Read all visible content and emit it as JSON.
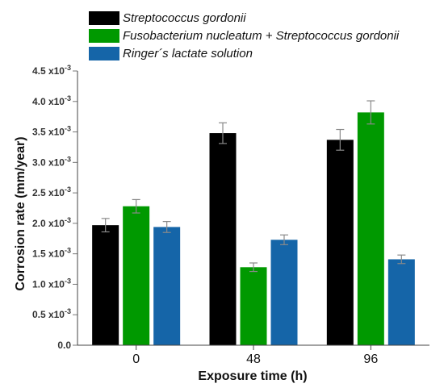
{
  "chart_data": {
    "type": "bar",
    "categories": [
      "0",
      "48",
      "96"
    ],
    "series": [
      {
        "name": "Streptococcus gordonii",
        "color": "#000000",
        "values": [
          0.00197,
          0.00348,
          0.00337
        ],
        "errors": [
          0.00011,
          0.00017,
          0.00017
        ]
      },
      {
        "name": "Fusobacterium nucleatum + Streptococcus gordonii",
        "color": "#009900",
        "values": [
          0.00228,
          0.00128,
          0.00382
        ],
        "errors": [
          0.00011,
          7e-05,
          0.00019
        ]
      },
      {
        "name": "Ringer´s lactate solution",
        "color": "#1565a8",
        "values": [
          0.00194,
          0.00173,
          0.00141
        ],
        "errors": [
          9e-05,
          8e-05,
          7e-05
        ]
      }
    ],
    "xlabel": "Exposure time (h)",
    "ylabel": "Corrosion rate (mm/year)",
    "ylim": [
      0,
      0.0045
    ],
    "ytick_values": [
      0,
      0.0005,
      0.001,
      0.0015,
      0.002,
      0.0025,
      0.003,
      0.0035,
      0.004,
      0.0045
    ],
    "ytick_labels": [
      {
        "mantissa": "0.0",
        "exp": ""
      },
      {
        "mantissa": "0.5 x10",
        "exp": "-3"
      },
      {
        "mantissa": "1.0 x10",
        "exp": "-3"
      },
      {
        "mantissa": "1.5 x10",
        "exp": "-3"
      },
      {
        "mantissa": "2.0 x10",
        "exp": "-3"
      },
      {
        "mantissa": "2.5 x10",
        "exp": "-3"
      },
      {
        "mantissa": "3.0 x10",
        "exp": "-3"
      },
      {
        "mantissa": "3.5 x10",
        "exp": "-3"
      },
      {
        "mantissa": "4.0 x10",
        "exp": "-3"
      },
      {
        "mantissa": "4.5 x10",
        "exp": "-3"
      }
    ],
    "legend_position": "top",
    "grid": false
  }
}
